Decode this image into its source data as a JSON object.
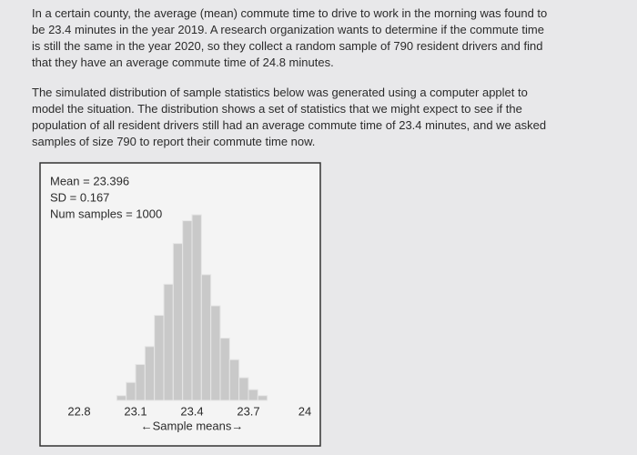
{
  "paragraphs": [
    {
      "lines": [
        "In a certain county, the average (mean) commute time to drive to work in the morning was found to",
        "be 23.4 minutes in the year 2019. A research organization wants to determine if the commute time",
        "is still the same in the year 2020, so they collect a random sample of 790 resident drivers and find",
        "that they have an average commute time of 24.8 minutes."
      ]
    },
    {
      "lines": [
        "The simulated distribution of sample statistics below was generated using a computer applet to",
        "model the situation. The distribution shows a set of statistics that we might expect to see if the",
        "population of all resident drivers still had an average commute time of 23.4 minutes, and we asked",
        "samples of size 790 to report their commute time now."
      ]
    }
  ],
  "chart_data": {
    "type": "histogram",
    "stats": [
      "Mean = 23.396",
      "SD = 0.167",
      "Num samples = 1000"
    ],
    "xlabel": "←Sample means→",
    "bins": [
      23,
      23.05,
      23.1,
      23.15,
      23.2,
      23.25,
      23.3,
      23.35,
      23.4,
      23.45,
      23.5,
      23.55,
      23.6,
      23.65,
      23.7,
      23.75,
      23.8
    ],
    "values": [
      4,
      15,
      30,
      45,
      71,
      97,
      131,
      150,
      155,
      105,
      79,
      52,
      34,
      19,
      9,
      4
    ],
    "color": "#c9c9c9",
    "xlim": [
      22.8,
      24
    ],
    "xticks": [
      22.8,
      23.1,
      23.4,
      23.7,
      24
    ]
  }
}
